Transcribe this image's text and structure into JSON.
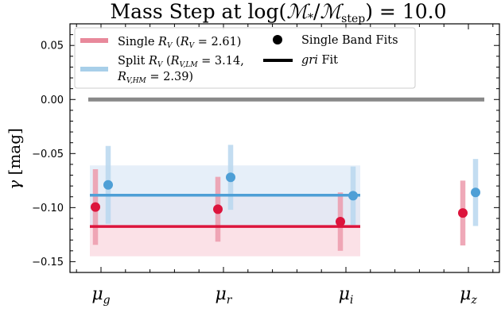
{
  "chart_data": {
    "type": "scatter",
    "title": "Mass Step at log(ℳ*/ℳstep) = 10.0",
    "ylabel": "γ [mag]",
    "xlabel": "",
    "categories": [
      "μg",
      "μr",
      "μi",
      "μz"
    ],
    "ylim": [
      -0.16,
      0.07
    ],
    "yticks": [
      0.05,
      0.0,
      -0.05,
      -0.1,
      -0.15
    ],
    "ytick_labels": [
      "0.05",
      "0.00",
      "−0.05",
      "−0.10",
      "−0.15"
    ],
    "reference_line": {
      "y": 0.0,
      "color": "#888888"
    },
    "legend": {
      "placement": "top-left",
      "entries": [
        {
          "label": "Single RV (RV = 2.61)",
          "kind": "band",
          "color": "#e8899b"
        },
        {
          "label": "Split RV (RV,LM = 3.14,",
          "label_line2": "RV,HM = 2.39)",
          "kind": "band",
          "color": "#a8cfe9"
        },
        {
          "label": "Single Band Fits",
          "kind": "point",
          "color": "#000000"
        },
        {
          "label": "gri Fit",
          "kind": "line",
          "color": "#000000"
        }
      ]
    },
    "series": [
      {
        "name": "Single RV (RV = 2.61)",
        "color": "#dc143c",
        "values": [
          -0.0995,
          -0.1015,
          -0.113,
          -0.105
        ],
        "errors": [
          0.035,
          0.03,
          0.027,
          0.03
        ],
        "gri_fit": {
          "value": -0.1175,
          "band": [
            -0.145,
            -0.088
          ]
        }
      },
      {
        "name": "Split RV (RV,LM = 3.14, RV,HM = 2.39)",
        "color": "#4e9fd6",
        "values": [
          -0.079,
          -0.072,
          -0.089,
          -0.086
        ],
        "errors": [
          0.036,
          0.03,
          0.027,
          0.031
        ],
        "gri_fit": {
          "value": -0.0885,
          "band": [
            -0.117,
            -0.061
          ]
        }
      }
    ]
  }
}
